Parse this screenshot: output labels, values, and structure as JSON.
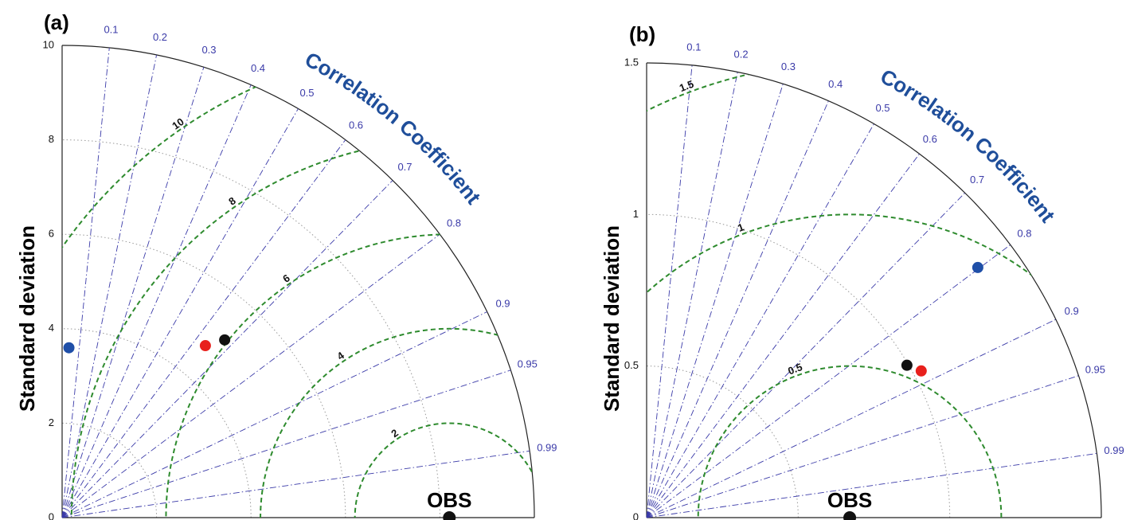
{
  "chart_data": [
    {
      "type": "taylor",
      "panel_label": "(a)",
      "ylabel": "Standard deviation",
      "corr_label": "Correlation Coefficient",
      "ylim": [
        0,
        10
      ],
      "yticks": [
        0,
        2,
        4,
        6,
        8,
        10
      ],
      "corr_ticks": [
        0.1,
        0.2,
        0.3,
        0.4,
        0.5,
        0.6,
        0.7,
        0.8,
        0.9,
        0.95,
        0.99
      ],
      "rms_ticks": [
        2,
        4,
        6,
        8,
        10
      ],
      "rms_color": "#2e8b2e",
      "corr_color": "#3a3aa8",
      "reference": {
        "label": "OBS",
        "std": 8.2
      },
      "points": {
        "std": [
          3.6,
          4.74,
          5.1
        ],
        "corr": [
          0.04,
          0.64,
          0.675
        ],
        "colors": [
          "#1f4fa8",
          "#e8201c",
          "#111111"
        ]
      }
    },
    {
      "type": "taylor",
      "panel_label": "(b)",
      "ylabel": "Standard deviation",
      "corr_label": "Correlation Coefficient",
      "ylim": [
        0,
        1.5
      ],
      "yticks": [
        0,
        0.5,
        1,
        1.5
      ],
      "corr_ticks": [
        0.1,
        0.2,
        0.3,
        0.4,
        0.5,
        0.6,
        0.7,
        0.8,
        0.9,
        0.95,
        0.99
      ],
      "rms_ticks": [
        0.5,
        1,
        1.5
      ],
      "rms_color": "#2e8b2e",
      "corr_color": "#3a3aa8",
      "reference": {
        "label": "OBS",
        "std": 0.67
      },
      "points": {
        "std": [
          1.369,
          0.995,
          1.027
        ],
        "corr": [
          0.798,
          0.863,
          0.882
        ],
        "colors": [
          "#1f4fa8",
          "#111111",
          "#e8201c"
        ]
      }
    }
  ]
}
